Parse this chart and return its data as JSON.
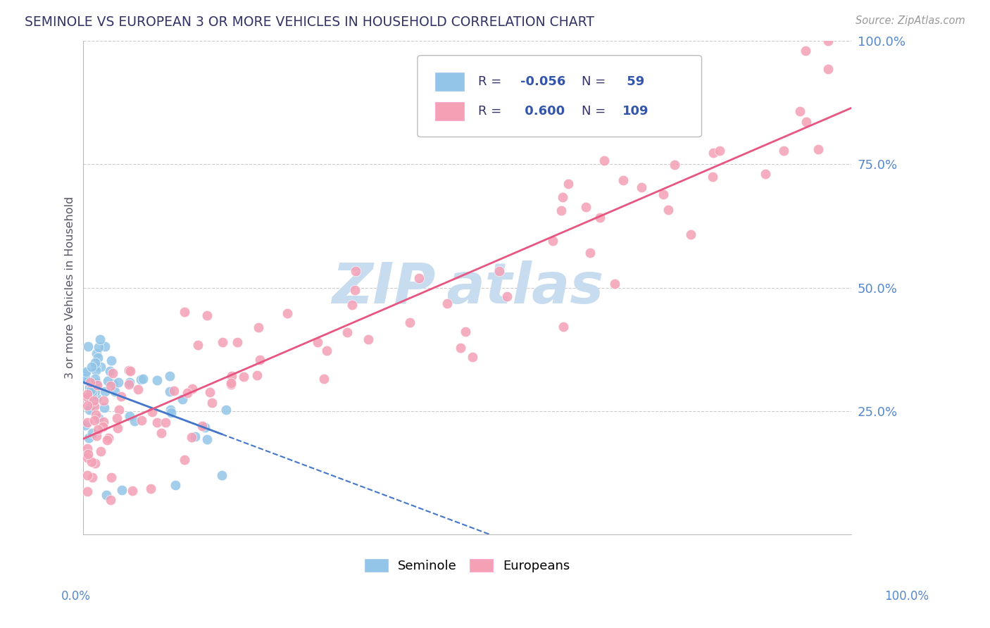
{
  "title": "SEMINOLE VS EUROPEAN 3 OR MORE VEHICLES IN HOUSEHOLD CORRELATION CHART",
  "source": "Source: ZipAtlas.com",
  "ylabel": "3 or more Vehicles in Household",
  "seminole_R": -0.056,
  "seminole_N": 59,
  "europeans_R": 0.6,
  "europeans_N": 109,
  "seminole_color": "#92C5E8",
  "europeans_color": "#F4A0B5",
  "seminole_trend_color": "#4477CC",
  "europeans_trend_color": "#E85580",
  "watermark_color": "#C8DCF0",
  "background_color": "#FFFFFF",
  "grid_color": "#CCCCCC",
  "title_color": "#333366",
  "axis_label_color": "#5588CC",
  "legend_text_color": "#333366",
  "legend_val_color": "#3355AA"
}
